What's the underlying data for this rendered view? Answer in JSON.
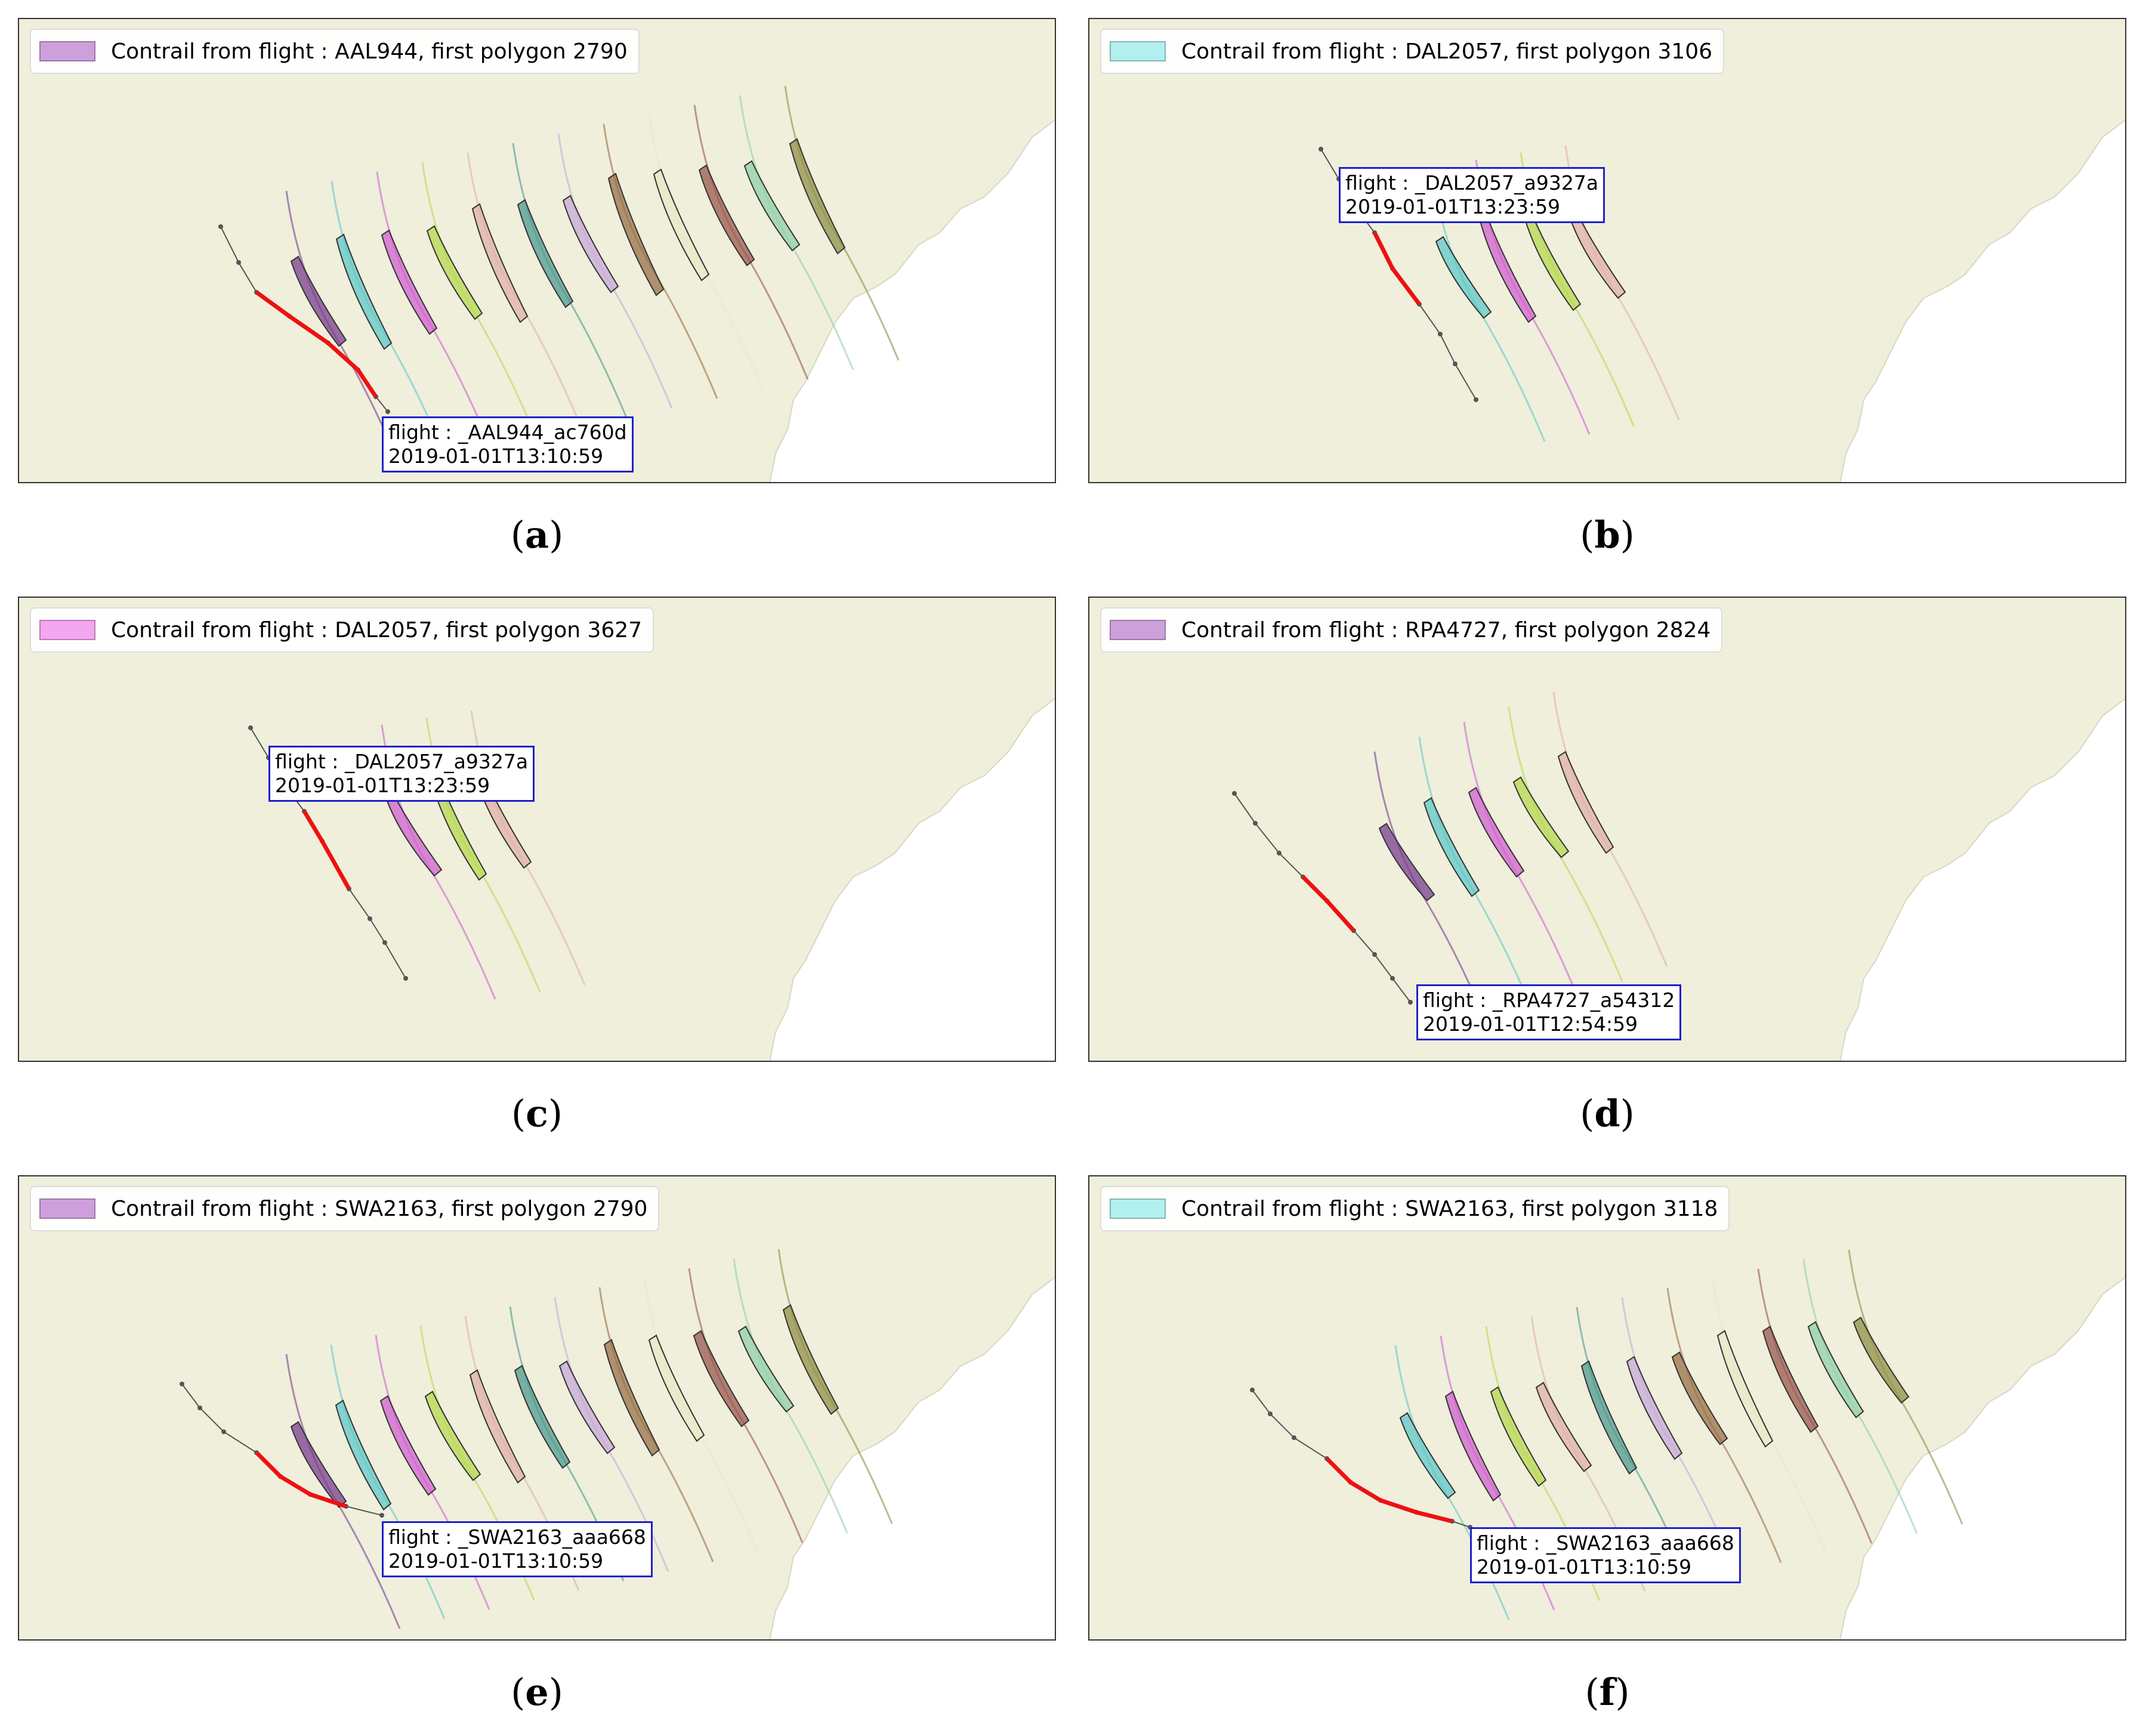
{
  "panels": [
    {
      "id": "a",
      "caption": "a",
      "legend": "Contrail from flight : AAL944, first polygon 2790",
      "swatch_color": "#cda0dc",
      "label_line1": "flight : _AAL944_ac760d",
      "label_line2": "2019-01-01T13:10:59",
      "contrail_colors": [
        "#7a3f8f",
        "#5fc8c8",
        "#d060d0",
        "#b5d850",
        "#e0b0a8",
        "#4f9a90",
        "#c8a8d8",
        "#9a7048",
        "#e8e8c8",
        "#9a5850",
        "#90d0a8",
        "#909048"
      ]
    },
    {
      "id": "b",
      "caption": "b",
      "legend": "Contrail from flight : DAL2057, first polygon 3106",
      "swatch_color": "#b2f0f0",
      "label_line1": "flight : _DAL2057_a9327a",
      "label_line2": "2019-01-01T13:23:59",
      "contrail_colors": [
        "#5fc8c8",
        "#d060d0",
        "#b5d850",
        "#e0b0a8"
      ]
    },
    {
      "id": "c",
      "caption": "c",
      "legend": "Contrail from flight : DAL2057, first polygon 3627",
      "swatch_color": "#f4a6f0",
      "label_line1": "flight : _DAL2057_a9327a",
      "label_line2": "2019-01-01T13:23:59",
      "contrail_colors": [
        "#d060d0",
        "#b5d850",
        "#e0b0a8"
      ]
    },
    {
      "id": "d",
      "caption": "d",
      "legend": "Contrail from flight : RPA4727, first polygon 2824",
      "swatch_color": "#cda0dc",
      "label_line1": "flight : _RPA4727_a54312",
      "label_line2": "2019-01-01T12:54:59",
      "contrail_colors": [
        "#7a3f8f",
        "#5fc8c8",
        "#d060d0",
        "#b5d850",
        "#e0b0a8"
      ]
    },
    {
      "id": "e",
      "caption": "e",
      "legend": "Contrail from flight : SWA2163, first polygon 2790",
      "swatch_color": "#cda0dc",
      "label_line1": "flight : _SWA2163_aaa668",
      "label_line2": "2019-01-01T13:10:59",
      "contrail_colors": [
        "#7a3f8f",
        "#5fc8c8",
        "#d060d0",
        "#b5d850",
        "#e0b0a8",
        "#4f9a90",
        "#c8a8d8",
        "#9a7048",
        "#e8e8c8",
        "#9a5850",
        "#90d0a8",
        "#909048"
      ]
    },
    {
      "id": "f",
      "caption": "f",
      "legend": "Contrail from flight : SWA2163, first polygon 3118",
      "swatch_color": "#b2f0f0",
      "label_line1": "flight : _SWA2163_aaa668",
      "label_line2": "2019-01-01T13:10:59",
      "contrail_colors": [
        "#5fc8c8",
        "#d060d0",
        "#b5d850",
        "#e0b0a8",
        "#4f9a90",
        "#c8a8d8",
        "#9a7048",
        "#e8e8c8",
        "#9a5850",
        "#90d0a8",
        "#909048"
      ]
    }
  ],
  "colors": {
    "land": "#efefdc",
    "ocean": "#ffffff",
    "flight_path": "#ee1111",
    "track_marker": "#555555",
    "label_border": "#2020cc"
  }
}
